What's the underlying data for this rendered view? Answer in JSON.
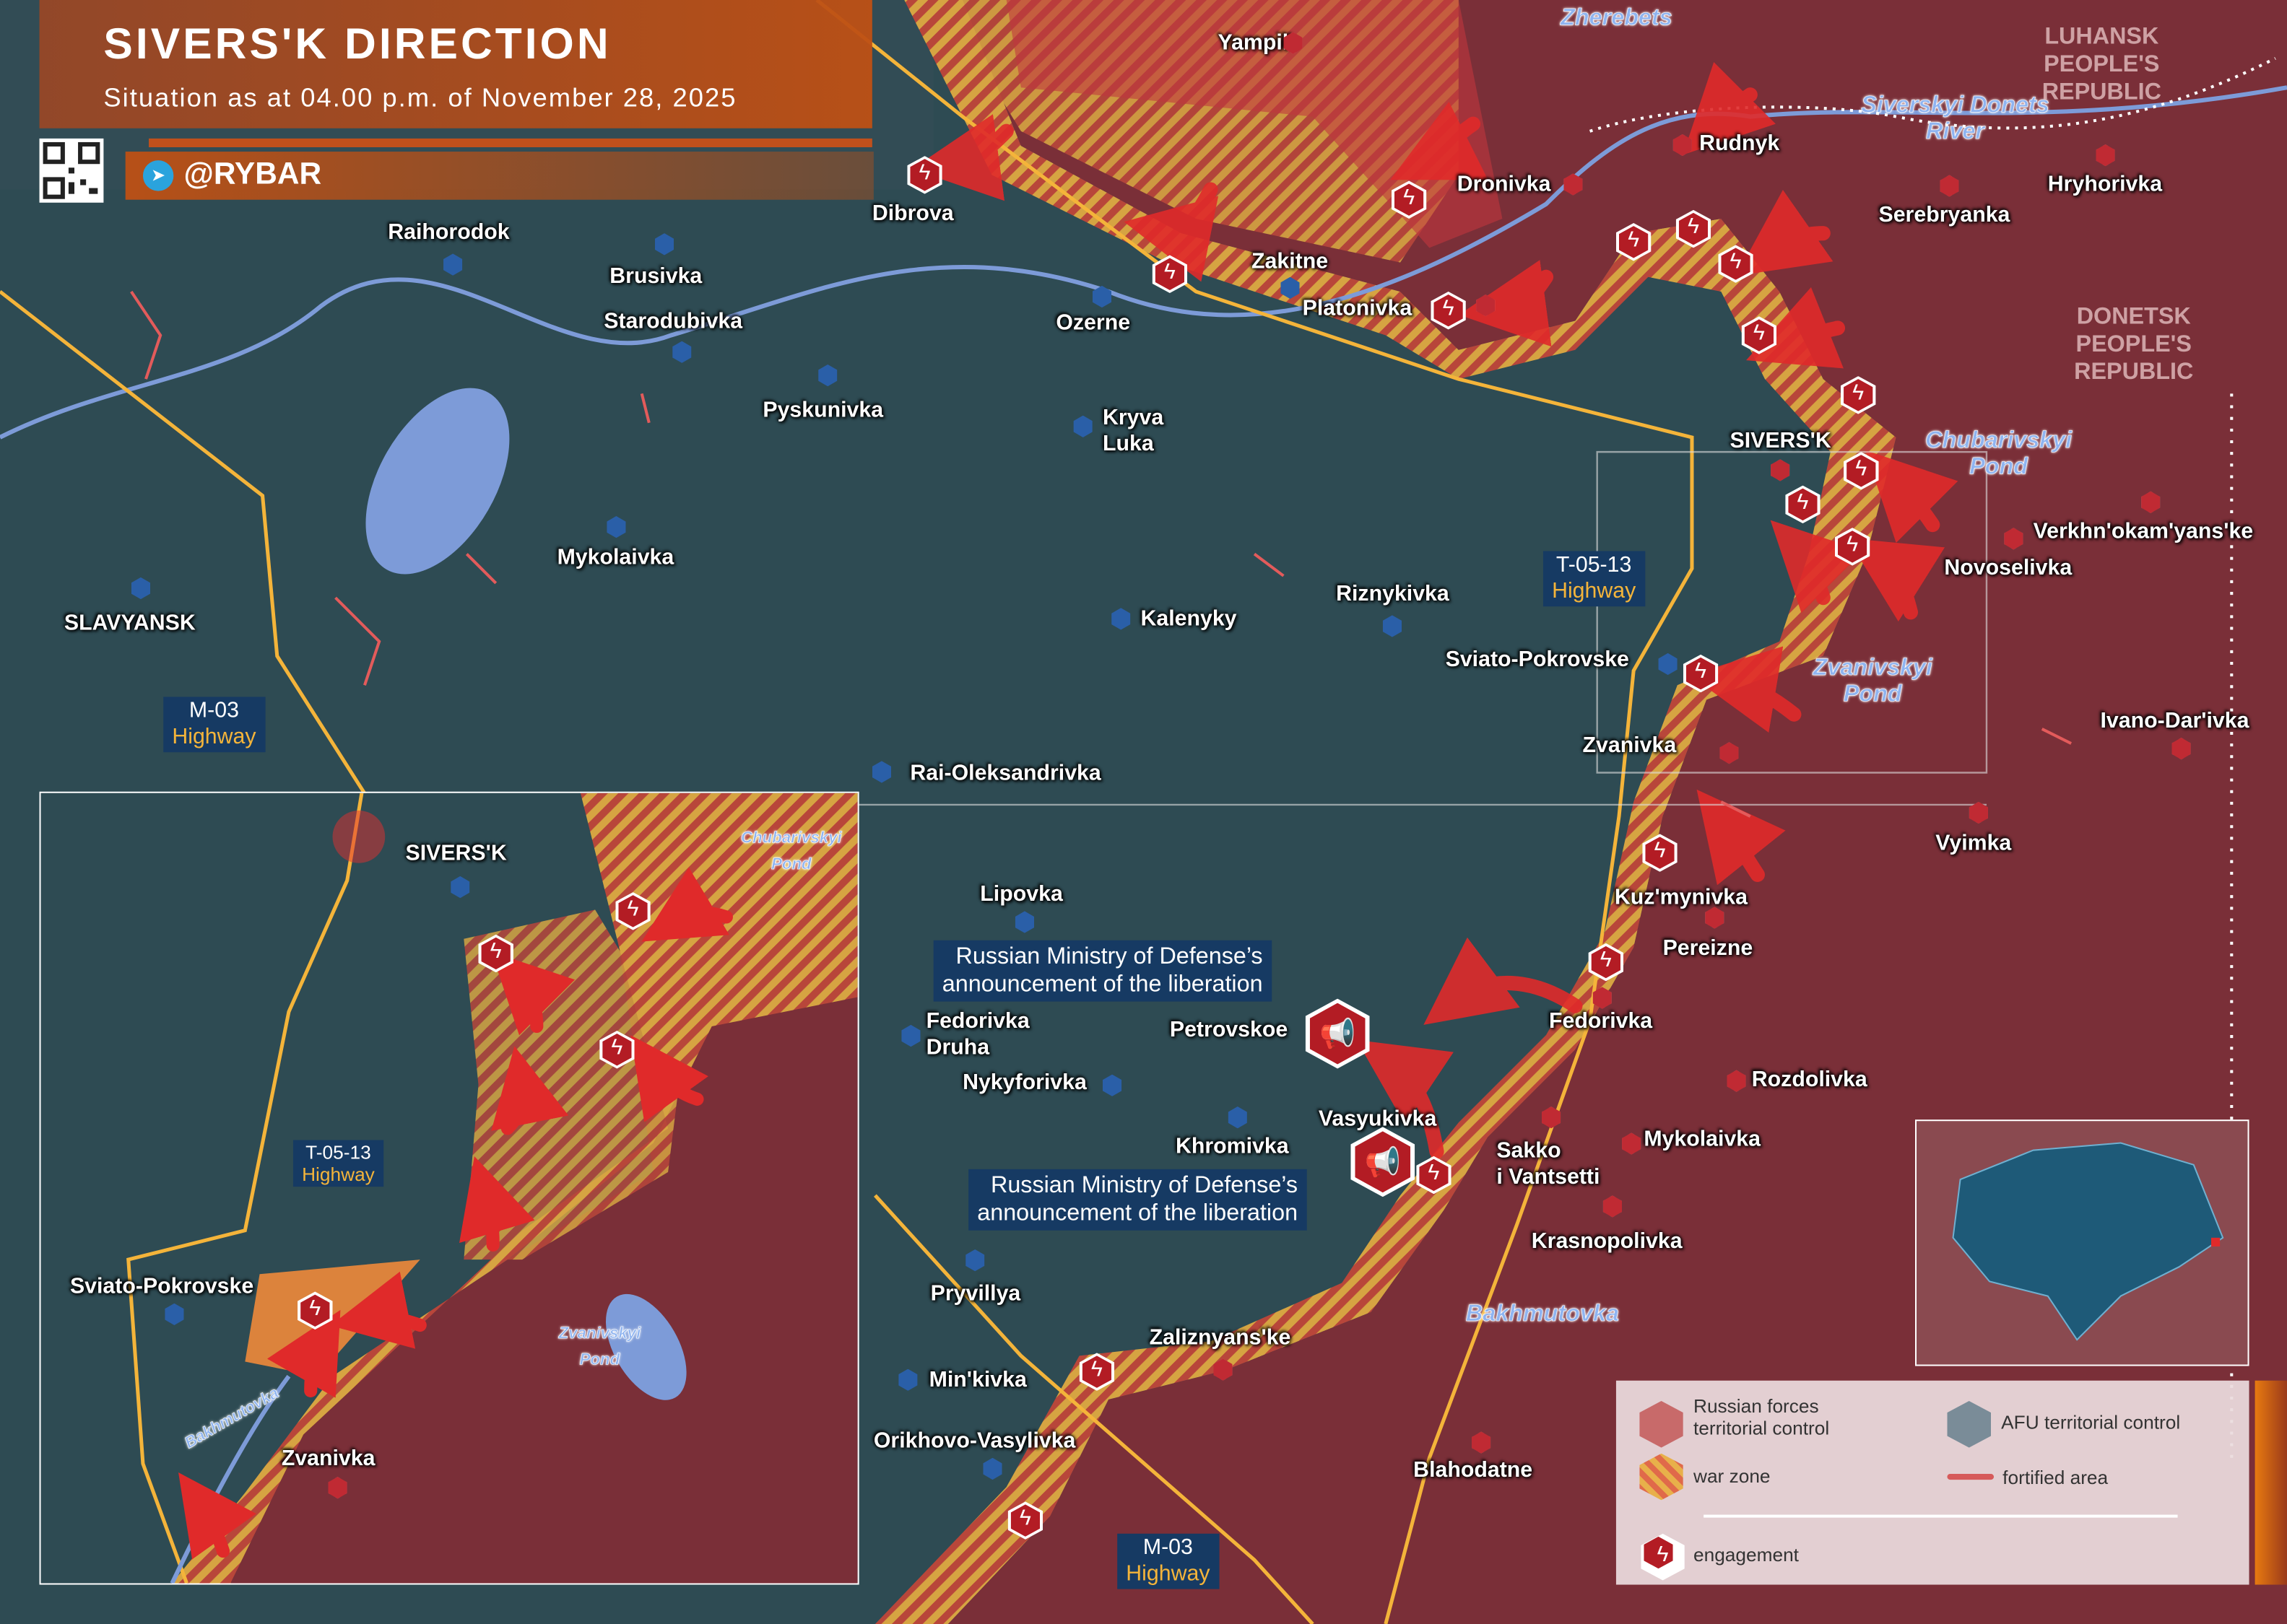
{
  "header": {
    "title": "SIVERS'K DIRECTION",
    "subtitle": "Situation as at 04.00 p.m. of November 28, 2025",
    "brand": "@RYBAR",
    "telegram_icon": "telegram-icon",
    "qr": "qr-code"
  },
  "colors": {
    "russian_control": "#7a2f38",
    "afu_control": "#2b4a52",
    "war_zone_a": "#e8b04a",
    "war_zone_b": "#c84a3a",
    "engagement": "#b31c24",
    "fortified": "#e35b5b",
    "header": "#c0501c",
    "highway": "#f4b43a"
  },
  "regions": {
    "luhansk": "LUHANSK\nPEOPLE'S\nREPUBLIC",
    "donetsk": "DONETSK\nPEOPLE'S\nREPUBLIC"
  },
  "settlements": [
    {
      "name": "Yampil'",
      "control": "russian"
    },
    {
      "name": "Dronivka",
      "control": "russian"
    },
    {
      "name": "Rudnyk",
      "control": "russian"
    },
    {
      "name": "Serebryanka",
      "control": "russian"
    },
    {
      "name": "Hryhorivka",
      "control": "russian"
    },
    {
      "name": "Verkhn'okam'yans'ke",
      "control": "russian"
    },
    {
      "name": "Novoselivka",
      "control": "russian"
    },
    {
      "name": "Ivano-Dar'ivka",
      "control": "russian"
    },
    {
      "name": "Vyimka",
      "control": "russian"
    },
    {
      "name": "Zvanivka",
      "control": "russian"
    },
    {
      "name": "Kuz'mynivka",
      "control": "russian"
    },
    {
      "name": "Pereizne",
      "control": "russian"
    },
    {
      "name": "Fedorivka",
      "control": "russian"
    },
    {
      "name": "Rozdolivka",
      "control": "russian"
    },
    {
      "name": "Mykolaivka",
      "control": "russian"
    },
    {
      "name": "Sakko\ni Vantsetti",
      "control": "russian"
    },
    {
      "name": "Krasnopolivka",
      "control": "russian"
    },
    {
      "name": "Blahodatne",
      "control": "russian"
    },
    {
      "name": "Zaliznyans'ke",
      "control": "russian"
    },
    {
      "name": "Platonivka",
      "control": "russian"
    },
    {
      "name": "Zakitne",
      "control": "afu"
    },
    {
      "name": "Raihorodok",
      "control": "afu"
    },
    {
      "name": "Brusivka",
      "control": "afu"
    },
    {
      "name": "Starodubivka",
      "control": "afu"
    },
    {
      "name": "Pyskunivka",
      "control": "afu"
    },
    {
      "name": "Ozerne",
      "control": "afu"
    },
    {
      "name": "Kryva\nLuka",
      "control": "afu"
    },
    {
      "name": "Mykolaivka",
      "control": "afu"
    },
    {
      "name": "SLAVYANSK",
      "control": "afu"
    },
    {
      "name": "Kalenyky",
      "control": "afu"
    },
    {
      "name": "Riznykivka",
      "control": "afu"
    },
    {
      "name": "Sviato-Pokrovske",
      "control": "afu"
    },
    {
      "name": "Rai-Oleksandrivka",
      "control": "afu"
    },
    {
      "name": "Lipovka",
      "control": "afu"
    },
    {
      "name": "Fedorivka\nDruha",
      "control": "afu"
    },
    {
      "name": "Nykyforivka",
      "control": "afu"
    },
    {
      "name": "Khromivka",
      "control": "afu"
    },
    {
      "name": "Pryvillya",
      "control": "afu"
    },
    {
      "name": "Min'kivka",
      "control": "afu"
    },
    {
      "name": "Orikhovo-Vasylivka",
      "control": "afu"
    },
    {
      "name": "SIVERS'K",
      "control": "war_zone"
    },
    {
      "name": "Dibrova",
      "control": "war_zone"
    },
    {
      "name": "Petrovskoe",
      "control": "russian"
    },
    {
      "name": "Vasyukivka",
      "control": "russian"
    }
  ],
  "water": [
    {
      "name": "Zherebets"
    },
    {
      "name": "Siverskyi Donets\nRiver"
    },
    {
      "name": "Chubarivskyi\nPond"
    },
    {
      "name": "Zvanivskyi\nPond"
    },
    {
      "name": "Bakhmutovka"
    }
  ],
  "highways": [
    {
      "code": "T-05-13",
      "type": "Highway"
    },
    {
      "code": "M-03",
      "type": "Highway"
    },
    {
      "code": "M-03",
      "type": "Highway"
    }
  ],
  "callouts": [
    {
      "text": "Russian Ministry of Defense’s\nannouncement of the liberation"
    },
    {
      "text": "Russian Ministry of Defense’s\nannouncement of the liberation"
    }
  ],
  "inset": {
    "labels": [
      "SIVERS'K",
      "Sviato-Pokrovske",
      "Zvanivka"
    ],
    "water": [
      "Chubarivskyi\nPond",
      "Zvanivskyi\nPond",
      "Bakhmutovka"
    ],
    "highway": {
      "code": "T-05-13",
      "type": "Highway"
    }
  },
  "legend": {
    "russian": "Russian forces\nterritorial control",
    "afu": "AFU territorial control",
    "war_zone": "war zone",
    "fortified": "fortified area",
    "engagement": "engagement"
  }
}
